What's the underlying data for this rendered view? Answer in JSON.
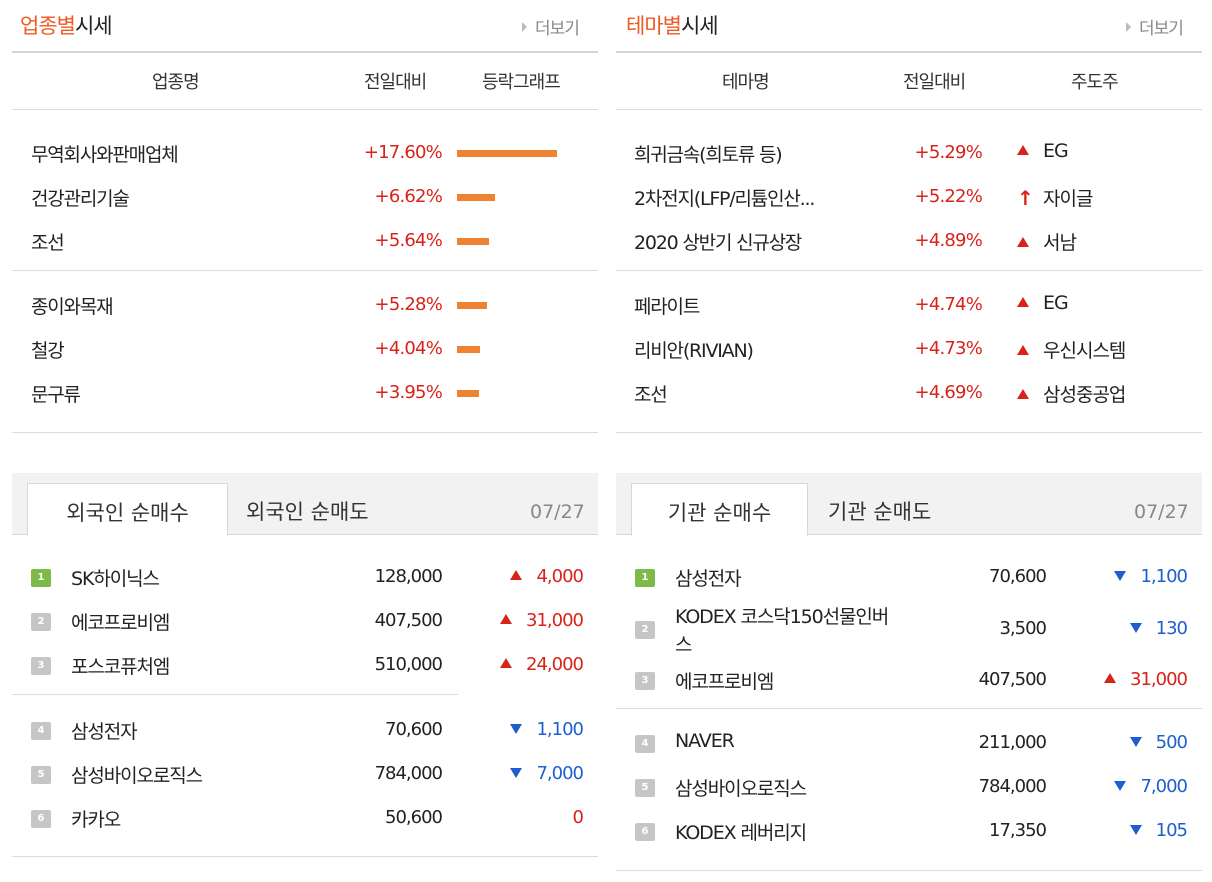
{
  "industry": {
    "title_accent": "업종별",
    "title_rest": "시세",
    "more": "더보기",
    "col_name": "업종명",
    "col_change": "전일대비",
    "col_graph": "등락그래프",
    "rows": [
      {
        "name": "무역회사와판매업체",
        "pct": "+17.60%",
        "bar": 17.6
      },
      {
        "name": "건강관리기술",
        "pct": "+6.62%",
        "bar": 6.62
      },
      {
        "name": "조선",
        "pct": "+5.64%",
        "bar": 5.64
      },
      {
        "name": "종이와목재",
        "pct": "+5.28%",
        "bar": 5.28
      },
      {
        "name": "철강",
        "pct": "+4.04%",
        "bar": 4.04
      },
      {
        "name": "문구류",
        "pct": "+3.95%",
        "bar": 3.95
      }
    ]
  },
  "theme": {
    "title_accent": "테마별",
    "title_rest": "시세",
    "more": "더보기",
    "col_name": "테마명",
    "col_change": "전일대비",
    "col_leader": "주도주",
    "rows": [
      {
        "name": "희귀금속(희토류 등)",
        "pct": "+5.29%",
        "leader": "EG",
        "icon": "up-triangle-icon"
      },
      {
        "name": "2차전지(LFP/리튬인산...",
        "pct": "+5.22%",
        "leader": "자이글",
        "icon": "upper-limit-arrow-icon"
      },
      {
        "name": "2020 상반기 신규상장",
        "pct": "+4.89%",
        "leader": "서남",
        "icon": "up-triangle-icon"
      },
      {
        "name": "페라이트",
        "pct": "+4.74%",
        "leader": "EG",
        "icon": "up-triangle-icon"
      },
      {
        "name": "리비안(RIVIAN)",
        "pct": "+4.73%",
        "leader": "우신시스템",
        "icon": "up-triangle-icon"
      },
      {
        "name": "조선",
        "pct": "+4.69%",
        "leader": "삼성중공업",
        "icon": "up-triangle-icon"
      }
    ]
  },
  "foreign": {
    "tab_buy": "외국인 순매수",
    "tab_sell": "외국인 순매도",
    "date": "07/27",
    "rows": [
      {
        "rank": "1",
        "name": "SK하이닉스",
        "price": "128,000",
        "change": "4,000",
        "dir": "up"
      },
      {
        "rank": "2",
        "name": "에코프로비엠",
        "price": "407,500",
        "change": "31,000",
        "dir": "up"
      },
      {
        "rank": "3",
        "name": "포스코퓨처엠",
        "price": "510,000",
        "change": "24,000",
        "dir": "up"
      },
      {
        "rank": "4",
        "name": "삼성전자",
        "price": "70,600",
        "change": "1,100",
        "dir": "down"
      },
      {
        "rank": "5",
        "name": "삼성바이오로직스",
        "price": "784,000",
        "change": "7,000",
        "dir": "down"
      },
      {
        "rank": "6",
        "name": "카카오",
        "price": "50,600",
        "change": "0",
        "dir": "flat"
      }
    ]
  },
  "institution": {
    "tab_buy": "기관 순매수",
    "tab_sell": "기관 순매도",
    "date": "07/27",
    "rows": [
      {
        "rank": "1",
        "name": "삼성전자",
        "price": "70,600",
        "change": "1,100",
        "dir": "down"
      },
      {
        "rank": "2",
        "name_line1": "KODEX 코스닥150선물인버",
        "name_line2": "스",
        "price": "3,500",
        "change": "130",
        "dir": "down"
      },
      {
        "rank": "3",
        "name": "에코프로비엠",
        "price": "407,500",
        "change": "31,000",
        "dir": "up"
      },
      {
        "rank": "4",
        "name": "NAVER",
        "price": "211,000",
        "change": "500",
        "dir": "down"
      },
      {
        "rank": "5",
        "name": "삼성바이오로직스",
        "price": "784,000",
        "change": "7,000",
        "dir": "down"
      },
      {
        "rank": "6",
        "name": "KODEX 레버리지",
        "price": "17,350",
        "change": "105",
        "dir": "down"
      }
    ]
  },
  "colors": {
    "accent": "#ee5a24",
    "up": "#d8231a",
    "down": "#1e5fd0",
    "bar": "#f08234",
    "rank_first": "#7dba4a",
    "rank_other": "#c6c6c6"
  }
}
